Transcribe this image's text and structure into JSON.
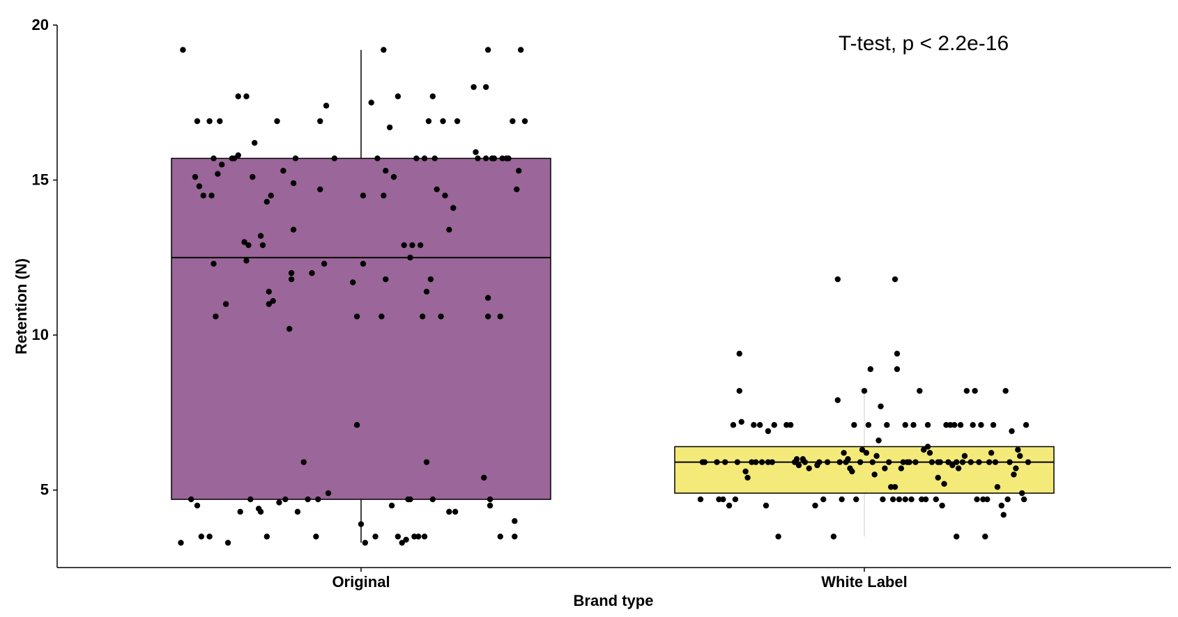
{
  "chart_data": {
    "type": "box",
    "xlabel": "Brand type",
    "ylabel": "Retention (N)",
    "annotation": "T-test, p < 2.2e-16",
    "ylim": [
      2.5,
      20
    ],
    "yticks": [
      5,
      10,
      15,
      20
    ],
    "categories": [
      "Original",
      "White Label"
    ],
    "series": [
      {
        "category": "Original",
        "fill": "#9b6699",
        "whisker_color": "#000000",
        "min": 3.3,
        "q1": 4.7,
        "median": 12.5,
        "q3": 15.7,
        "max": 19.2,
        "points": [
          [
            -0.88,
            3.3
          ],
          [
            -0.87,
            19.2
          ],
          [
            -0.83,
            4.7
          ],
          [
            -0.81,
            15.1
          ],
          [
            -0.8,
            16.9
          ],
          [
            -0.8,
            4.5
          ],
          [
            -0.79,
            14.8
          ],
          [
            -0.78,
            3.5
          ],
          [
            -0.77,
            14.5
          ],
          [
            -0.74,
            3.5
          ],
          [
            -0.74,
            16.9
          ],
          [
            -0.73,
            14.5
          ],
          [
            -0.72,
            12.3
          ],
          [
            -0.72,
            15.7
          ],
          [
            -0.71,
            10.6
          ],
          [
            -0.7,
            15.2
          ],
          [
            -0.69,
            16.9
          ],
          [
            -0.68,
            15.5
          ],
          [
            -0.66,
            11.0
          ],
          [
            -0.65,
            3.3
          ],
          [
            -0.63,
            15.7
          ],
          [
            -0.62,
            15.7
          ],
          [
            -0.6,
            15.8
          ],
          [
            -0.59,
            4.3
          ],
          [
            -0.6,
            17.7
          ],
          [
            -0.57,
            13.0
          ],
          [
            -0.56,
            12.4
          ],
          [
            -0.56,
            17.7
          ],
          [
            -0.55,
            12.9
          ],
          [
            -0.54,
            4.7
          ],
          [
            -0.53,
            15.1
          ],
          [
            -0.52,
            16.2
          ],
          [
            -0.5,
            4.4
          ],
          [
            -0.49,
            4.3
          ],
          [
            -0.49,
            13.2
          ],
          [
            -0.48,
            12.9
          ],
          [
            -0.46,
            3.5
          ],
          [
            -0.46,
            14.3
          ],
          [
            -0.45,
            11.4
          ],
          [
            -0.45,
            11.0
          ],
          [
            -0.44,
            14.5
          ],
          [
            -0.43,
            11.1
          ],
          [
            -0.41,
            16.9
          ],
          [
            -0.4,
            4.6
          ],
          [
            -0.38,
            15.3
          ],
          [
            -0.37,
            4.7
          ],
          [
            -0.35,
            10.2
          ],
          [
            -0.34,
            11.8
          ],
          [
            -0.34,
            12.0
          ],
          [
            -0.33,
            13.4
          ],
          [
            -0.33,
            14.9
          ],
          [
            -0.32,
            15.7
          ],
          [
            -0.31,
            4.3
          ],
          [
            -0.28,
            5.9
          ],
          [
            -0.26,
            4.7
          ],
          [
            -0.24,
            12.0
          ],
          [
            -0.22,
            3.5
          ],
          [
            -0.21,
            4.7
          ],
          [
            -0.2,
            14.7
          ],
          [
            -0.2,
            16.9
          ],
          [
            -0.18,
            12.3
          ],
          [
            -0.17,
            17.4
          ],
          [
            -0.16,
            4.9
          ],
          [
            -0.13,
            15.7
          ],
          [
            -0.04,
            11.7
          ],
          [
            -0.02,
            7.1
          ],
          [
            -0.02,
            10.6
          ],
          [
            0.0,
            3.9
          ],
          [
            0.01,
            12.3
          ],
          [
            0.01,
            14.5
          ],
          [
            0.02,
            3.3
          ],
          [
            0.05,
            17.5
          ],
          [
            0.07,
            3.5
          ],
          [
            0.08,
            15.7
          ],
          [
            0.1,
            10.6
          ],
          [
            0.11,
            19.2
          ],
          [
            0.11,
            14.5
          ],
          [
            0.12,
            11.8
          ],
          [
            0.12,
            15.3
          ],
          [
            0.14,
            16.7
          ],
          [
            0.15,
            4.5
          ],
          [
            0.16,
            15.1
          ],
          [
            0.18,
            17.7
          ],
          [
            0.18,
            3.5
          ],
          [
            0.2,
            3.3
          ],
          [
            0.21,
            12.9
          ],
          [
            0.22,
            3.4
          ],
          [
            0.23,
            4.7
          ],
          [
            0.24,
            12.5
          ],
          [
            0.24,
            4.7
          ],
          [
            0.25,
            12.9
          ],
          [
            0.26,
            3.5
          ],
          [
            0.27,
            15.7
          ],
          [
            0.28,
            3.5
          ],
          [
            0.29,
            12.9
          ],
          [
            0.3,
            10.6
          ],
          [
            0.31,
            3.5
          ],
          [
            0.31,
            15.7
          ],
          [
            0.32,
            5.9
          ],
          [
            0.32,
            11.4
          ],
          [
            0.33,
            16.9
          ],
          [
            0.34,
            11.8
          ],
          [
            0.35,
            4.7
          ],
          [
            0.35,
            17.7
          ],
          [
            0.36,
            15.7
          ],
          [
            0.37,
            14.7
          ],
          [
            0.39,
            10.6
          ],
          [
            0.4,
            16.9
          ],
          [
            0.41,
            14.5
          ],
          [
            0.43,
            4.3
          ],
          [
            0.43,
            13.4
          ],
          [
            0.45,
            14.1
          ],
          [
            0.46,
            4.3
          ],
          [
            0.47,
            16.9
          ],
          [
            0.55,
            18.0
          ],
          [
            0.56,
            15.9
          ],
          [
            0.57,
            15.7
          ],
          [
            0.6,
            5.4
          ],
          [
            0.61,
            18.0
          ],
          [
            0.61,
            15.7
          ],
          [
            0.62,
            10.6
          ],
          [
            0.62,
            11.2
          ],
          [
            0.62,
            19.2
          ],
          [
            0.63,
            4.5
          ],
          [
            0.63,
            4.7
          ],
          [
            0.64,
            15.7
          ],
          [
            0.65,
            15.7
          ],
          [
            0.68,
            10.6
          ],
          [
            0.68,
            3.5
          ],
          [
            0.69,
            15.7
          ],
          [
            0.71,
            15.7
          ],
          [
            0.72,
            15.7
          ],
          [
            0.74,
            16.9
          ],
          [
            0.75,
            4.0
          ],
          [
            0.75,
            3.5
          ],
          [
            0.76,
            14.7
          ],
          [
            0.77,
            15.3
          ],
          [
            0.78,
            19.2
          ],
          [
            0.8,
            16.9
          ]
        ]
      },
      {
        "category": "White Label",
        "fill": "#f4ea7a",
        "whisker_color": "#dddddd",
        "min": 3.5,
        "q1": 4.9,
        "median": 5.9,
        "q3": 6.4,
        "max": 8.2,
        "points": [
          [
            -0.8,
            4.7
          ],
          [
            -0.79,
            5.9
          ],
          [
            -0.78,
            5.9
          ],
          [
            -0.72,
            5.9
          ],
          [
            -0.71,
            4.7
          ],
          [
            -0.69,
            4.7
          ],
          [
            -0.68,
            5.9
          ],
          [
            -0.66,
            4.5
          ],
          [
            -0.64,
            7.1
          ],
          [
            -0.63,
            4.7
          ],
          [
            -0.62,
            5.9
          ],
          [
            -0.61,
            9.4
          ],
          [
            -0.61,
            8.2
          ],
          [
            -0.6,
            7.2
          ],
          [
            -0.58,
            5.6
          ],
          [
            -0.57,
            5.4
          ],
          [
            -0.55,
            5.9
          ],
          [
            -0.54,
            7.1
          ],
          [
            -0.53,
            5.9
          ],
          [
            -0.51,
            7.1
          ],
          [
            -0.5,
            5.9
          ],
          [
            -0.48,
            4.5
          ],
          [
            -0.47,
            6.9
          ],
          [
            -0.47,
            5.9
          ],
          [
            -0.45,
            5.9
          ],
          [
            -0.44,
            7.1
          ],
          [
            -0.42,
            3.5
          ],
          [
            -0.38,
            7.1
          ],
          [
            -0.36,
            7.1
          ],
          [
            -0.34,
            5.9
          ],
          [
            -0.33,
            6.0
          ],
          [
            -0.32,
            5.8
          ],
          [
            -0.3,
            6.0
          ],
          [
            -0.29,
            5.9
          ],
          [
            -0.27,
            5.7
          ],
          [
            -0.24,
            4.5
          ],
          [
            -0.23,
            5.8
          ],
          [
            -0.22,
            5.9
          ],
          [
            -0.2,
            4.7
          ],
          [
            -0.18,
            5.9
          ],
          [
            -0.15,
            3.5
          ],
          [
            -0.13,
            7.9
          ],
          [
            -0.13,
            11.8
          ],
          [
            -0.12,
            5.9
          ],
          [
            -0.11,
            4.7
          ],
          [
            -0.1,
            6.2
          ],
          [
            -0.09,
            5.9
          ],
          [
            -0.08,
            6.0
          ],
          [
            -0.07,
            5.7
          ],
          [
            -0.06,
            5.6
          ],
          [
            -0.05,
            7.1
          ],
          [
            -0.04,
            4.7
          ],
          [
            -0.02,
            5.9
          ],
          [
            -0.01,
            6.3
          ],
          [
            0.0,
            8.2
          ],
          [
            0.01,
            6.2
          ],
          [
            0.02,
            7.1
          ],
          [
            0.03,
            8.9
          ],
          [
            0.04,
            5.9
          ],
          [
            0.05,
            5.5
          ],
          [
            0.06,
            6.1
          ],
          [
            0.07,
            6.6
          ],
          [
            0.08,
            7.7
          ],
          [
            0.09,
            4.7
          ],
          [
            0.1,
            5.7
          ],
          [
            0.11,
            7.1
          ],
          [
            0.12,
            5.9
          ],
          [
            0.13,
            5.1
          ],
          [
            0.14,
            4.7
          ],
          [
            0.15,
            5.1
          ],
          [
            0.15,
            11.8
          ],
          [
            0.16,
            9.4
          ],
          [
            0.16,
            8.9
          ],
          [
            0.17,
            4.7
          ],
          [
            0.18,
            5.7
          ],
          [
            0.19,
            5.9
          ],
          [
            0.2,
            4.7
          ],
          [
            0.2,
            7.1
          ],
          [
            0.21,
            5.9
          ],
          [
            0.22,
            5.9
          ],
          [
            0.23,
            4.7
          ],
          [
            0.24,
            7.1
          ],
          [
            0.25,
            5.9
          ],
          [
            0.27,
            8.2
          ],
          [
            0.28,
            4.7
          ],
          [
            0.29,
            6.3
          ],
          [
            0.3,
            4.7
          ],
          [
            0.31,
            7.1
          ],
          [
            0.31,
            6.4
          ],
          [
            0.32,
            6.2
          ],
          [
            0.33,
            5.9
          ],
          [
            0.35,
            4.7
          ],
          [
            0.36,
            5.9
          ],
          [
            0.36,
            5.4
          ],
          [
            0.37,
            5.9
          ],
          [
            0.38,
            4.5
          ],
          [
            0.39,
            5.2
          ],
          [
            0.4,
            7.1
          ],
          [
            0.41,
            5.9
          ],
          [
            0.42,
            7.1
          ],
          [
            0.43,
            5.8
          ],
          [
            0.44,
            7.1
          ],
          [
            0.45,
            3.5
          ],
          [
            0.45,
            5.9
          ],
          [
            0.46,
            5.7
          ],
          [
            0.47,
            7.1
          ],
          [
            0.48,
            5.9
          ],
          [
            0.49,
            6.1
          ],
          [
            0.5,
            8.2
          ],
          [
            0.52,
            5.9
          ],
          [
            0.53,
            7.1
          ],
          [
            0.54,
            8.2
          ],
          [
            0.55,
            4.7
          ],
          [
            0.56,
            5.9
          ],
          [
            0.57,
            7.1
          ],
          [
            0.58,
            4.7
          ],
          [
            0.59,
            3.5
          ],
          [
            0.6,
            4.7
          ],
          [
            0.61,
            5.9
          ],
          [
            0.62,
            6.2
          ],
          [
            0.63,
            7.1
          ],
          [
            0.64,
            5.9
          ],
          [
            0.65,
            5.1
          ],
          [
            0.67,
            4.5
          ],
          [
            0.68,
            4.2
          ],
          [
            0.69,
            8.2
          ],
          [
            0.7,
            4.7
          ],
          [
            0.71,
            5.9
          ],
          [
            0.72,
            6.9
          ],
          [
            0.73,
            5.5
          ],
          [
            0.74,
            5.7
          ],
          [
            0.75,
            6.3
          ],
          [
            0.76,
            6.1
          ],
          [
            0.77,
            4.9
          ],
          [
            0.78,
            4.7
          ],
          [
            0.79,
            7.1
          ],
          [
            0.8,
            5.9
          ]
        ]
      }
    ]
  }
}
